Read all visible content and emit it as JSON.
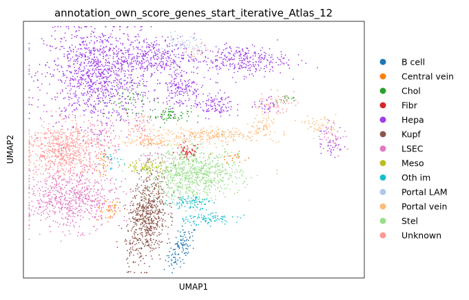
{
  "chart_data": {
    "type": "scatter",
    "title": "annotation_own_score_genes_start_iterative_Atlas_12",
    "xlabel": "UMAP1",
    "ylabel": "UMAP2",
    "ticks": "none",
    "grid": false,
    "legend_placement": "right",
    "series": [
      {
        "name": "B cell",
        "color": "#1f77b4",
        "clusters": [
          {
            "cx": 0.46,
            "cy": 0.1,
            "sx": 0.02,
            "sy": 0.04,
            "n": 110,
            "tilt": 0.6
          }
        ]
      },
      {
        "name": "Central vein",
        "color": "#ff7f0e",
        "clusters": [
          {
            "cx": 0.24,
            "cy": 0.26,
            "sx": 0.02,
            "sy": 0.03,
            "n": 40
          },
          {
            "cx": 0.23,
            "cy": 0.45,
            "sx": 0.01,
            "sy": 0.04,
            "n": 25
          },
          {
            "cx": 0.62,
            "cy": 0.47,
            "sx": 0.02,
            "sy": 0.01,
            "n": 20
          }
        ]
      },
      {
        "name": "Chol",
        "color": "#2ca02c",
        "clusters": [
          {
            "cx": 0.43,
            "cy": 0.64,
            "sx": 0.03,
            "sy": 0.015,
            "n": 70
          },
          {
            "cx": 0.3,
            "cy": 0.7,
            "sx": 0.05,
            "sy": 0.03,
            "n": 60
          },
          {
            "cx": 0.78,
            "cy": 0.7,
            "sx": 0.02,
            "sy": 0.01,
            "n": 15
          }
        ]
      },
      {
        "name": "Fibr",
        "color": "#d62728",
        "clusters": [
          {
            "cx": 0.48,
            "cy": 0.49,
            "sx": 0.02,
            "sy": 0.02,
            "n": 60
          }
        ]
      },
      {
        "name": "Hepa",
        "color": "#a03ce8",
        "clusters": [
          {
            "cx": 0.21,
            "cy": 0.8,
            "sx": 0.08,
            "sy": 0.1,
            "n": 1100
          },
          {
            "cx": 0.38,
            "cy": 0.87,
            "sx": 0.06,
            "sy": 0.04,
            "n": 300
          },
          {
            "cx": 0.46,
            "cy": 0.75,
            "sx": 0.03,
            "sy": 0.04,
            "n": 150
          },
          {
            "cx": 0.64,
            "cy": 0.86,
            "sx": 0.07,
            "sy": 0.03,
            "n": 300
          },
          {
            "cx": 0.56,
            "cy": 0.68,
            "sx": 0.03,
            "sy": 0.025,
            "n": 110
          },
          {
            "cx": 0.91,
            "cy": 0.53,
            "sx": 0.02,
            "sy": 0.04,
            "n": 40
          },
          {
            "cx": 0.72,
            "cy": 0.68,
            "sx": 0.02,
            "sy": 0.015,
            "n": 30
          }
        ]
      },
      {
        "name": "Kupf",
        "color": "#8c564b",
        "clusters": [
          {
            "cx": 0.36,
            "cy": 0.23,
            "sx": 0.03,
            "sy": 0.09,
            "n": 650,
            "tilt": 0.25
          }
        ]
      },
      {
        "name": "LSEC",
        "color": "#e377c2",
        "clusters": [
          {
            "cx": 0.13,
            "cy": 0.3,
            "sx": 0.07,
            "sy": 0.06,
            "n": 650
          },
          {
            "cx": 0.23,
            "cy": 0.55,
            "sx": 0.03,
            "sy": 0.04,
            "n": 60
          },
          {
            "cx": 0.92,
            "cy": 0.55,
            "sx": 0.02,
            "sy": 0.03,
            "n": 40
          },
          {
            "cx": 0.39,
            "cy": 0.48,
            "sx": 0.03,
            "sy": 0.02,
            "n": 30
          }
        ]
      },
      {
        "name": "Meso",
        "color": "#bcbd22",
        "clusters": [
          {
            "cx": 0.36,
            "cy": 0.43,
            "sx": 0.03,
            "sy": 0.015,
            "n": 70
          }
        ]
      },
      {
        "name": "Oth im",
        "color": "#17becf",
        "clusters": [
          {
            "cx": 0.49,
            "cy": 0.29,
            "sx": 0.03,
            "sy": 0.015,
            "n": 90
          },
          {
            "cx": 0.53,
            "cy": 0.22,
            "sx": 0.05,
            "sy": 0.012,
            "n": 90
          },
          {
            "cx": 0.25,
            "cy": 0.45,
            "sx": 0.02,
            "sy": 0.03,
            "n": 25
          }
        ]
      },
      {
        "name": "Portal LAM",
        "color": "#aec7e8",
        "clusters": [
          {
            "cx": 0.46,
            "cy": 0.92,
            "sx": 0.03,
            "sy": 0.02,
            "n": 60
          }
        ]
      },
      {
        "name": "Portal vein",
        "color": "#ffbb78",
        "clusters": [
          {
            "cx": 0.56,
            "cy": 0.56,
            "sx": 0.1,
            "sy": 0.015,
            "n": 250
          },
          {
            "cx": 0.38,
            "cy": 0.53,
            "sx": 0.05,
            "sy": 0.01,
            "n": 90
          },
          {
            "cx": 0.71,
            "cy": 0.6,
            "sx": 0.02,
            "sy": 0.02,
            "n": 45
          },
          {
            "cx": 0.88,
            "cy": 0.6,
            "sx": 0.025,
            "sy": 0.02,
            "n": 50
          }
        ]
      },
      {
        "name": "Stel",
        "color": "#98df8a",
        "clusters": [
          {
            "cx": 0.5,
            "cy": 0.4,
            "sx": 0.07,
            "sy": 0.05,
            "n": 750
          }
        ]
      },
      {
        "name": "Unknown",
        "color": "#ff9896",
        "clusters": [
          {
            "cx": 0.11,
            "cy": 0.5,
            "sx": 0.06,
            "sy": 0.06,
            "n": 700
          },
          {
            "cx": 0.34,
            "cy": 0.58,
            "sx": 0.02,
            "sy": 0.03,
            "n": 70
          },
          {
            "cx": 0.74,
            "cy": 0.69,
            "sx": 0.03,
            "sy": 0.02,
            "n": 60
          },
          {
            "cx": 0.51,
            "cy": 0.9,
            "sx": 0.015,
            "sy": 0.015,
            "n": 20
          }
        ]
      }
    ]
  }
}
